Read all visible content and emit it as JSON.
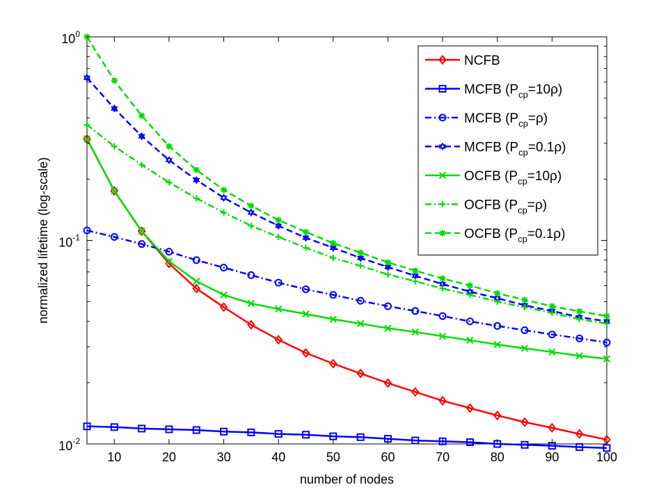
{
  "chart_data": {
    "type": "line",
    "xlabel": "number of nodes",
    "ylabel": "normalized lifetime (log-scale)",
    "y_scale": "log",
    "xlim": [
      5,
      100
    ],
    "ylim": [
      0.01,
      1
    ],
    "x_ticks": [
      10,
      20,
      30,
      40,
      50,
      60,
      70,
      80,
      90,
      100
    ],
    "y_ticks": [
      {
        "value": 1,
        "base": "10",
        "exp": "0"
      },
      {
        "value": 0.1,
        "base": "10",
        "exp": "-1"
      },
      {
        "value": 0.01,
        "base": "10",
        "exp": "-2"
      }
    ],
    "grid": false,
    "legend_position": "top-right",
    "x": [
      5,
      10,
      15,
      20,
      25,
      30,
      35,
      40,
      45,
      50,
      55,
      60,
      65,
      70,
      75,
      80,
      85,
      90,
      95,
      100
    ],
    "series": [
      {
        "name": "NCFB",
        "label_parts": [
          "NCFB"
        ],
        "color": "#ff0000",
        "linestyle": "solid",
        "marker": "diamond",
        "values": [
          0.315,
          0.175,
          0.111,
          0.077,
          0.058,
          0.047,
          0.0385,
          0.0325,
          0.028,
          0.0248,
          0.0222,
          0.0199,
          0.018,
          0.0163,
          0.015,
          0.0138,
          0.0128,
          0.012,
          0.0112,
          0.0105
        ]
      },
      {
        "name": "MCFB (Pcp=10ρ)",
        "label_parts": [
          "MCFB (P",
          "cp",
          "=10ρ)"
        ],
        "color": "#0000ff",
        "linestyle": "solid",
        "marker": "square",
        "values": [
          0.0122,
          0.0121,
          0.0119,
          0.0118,
          0.0117,
          0.0115,
          0.0114,
          0.0112,
          0.0111,
          0.0109,
          0.0108,
          0.0106,
          0.0104,
          0.0103,
          0.0102,
          0.01,
          0.0099,
          0.0098,
          0.00965,
          0.00955
        ]
      },
      {
        "name": "MCFB (Pcp=ρ)",
        "label_parts": [
          "MCFB (P",
          "cp",
          "=ρ)"
        ],
        "color": "#0000ff",
        "linestyle": "dashdot",
        "marker": "circle",
        "values": [
          0.112,
          0.104,
          0.096,
          0.088,
          0.08,
          0.0735,
          0.0675,
          0.062,
          0.0575,
          0.054,
          0.0505,
          0.0475,
          0.045,
          0.0425,
          0.04,
          0.038,
          0.0362,
          0.0345,
          0.033,
          0.0315
        ]
      },
      {
        "name": "MCFB (Pcp=0.1ρ)",
        "label_parts": [
          "MCFB (P",
          "cp",
          "=0.1ρ)"
        ],
        "color": "#0000ff",
        "linestyle": "dashed",
        "marker": "hexagram",
        "values": [
          0.63,
          0.445,
          0.325,
          0.248,
          0.198,
          0.162,
          0.137,
          0.118,
          0.103,
          0.092,
          0.082,
          0.074,
          0.067,
          0.061,
          0.056,
          0.052,
          0.048,
          0.045,
          0.042,
          0.04
        ]
      },
      {
        "name": "OCFB (Pcp=10ρ)",
        "label_parts": [
          "OCFB (P",
          "cp",
          "=10ρ)"
        ],
        "color": "#00dd00",
        "linestyle": "solid",
        "marker": "x",
        "values": [
          0.315,
          0.175,
          0.111,
          0.079,
          0.063,
          0.054,
          0.049,
          0.046,
          0.0435,
          0.041,
          0.039,
          0.037,
          0.0355,
          0.0338,
          0.0323,
          0.0308,
          0.0295,
          0.0283,
          0.0271,
          0.0262
        ]
      },
      {
        "name": "OCFB (Pcp=ρ)",
        "label_parts": [
          "OCFB (P",
          "cp",
          "=ρ)"
        ],
        "color": "#00dd00",
        "linestyle": "dashdot",
        "marker": "plus",
        "values": [
          0.37,
          0.29,
          0.235,
          0.193,
          0.161,
          0.137,
          0.118,
          0.104,
          0.092,
          0.082,
          0.075,
          0.068,
          0.063,
          0.058,
          0.054,
          0.05,
          0.047,
          0.044,
          0.041,
          0.039
        ]
      },
      {
        "name": "OCFB (Pcp=0.1ρ)",
        "label_parts": [
          "OCFB (P",
          "cp",
          "=0.1ρ)"
        ],
        "color": "#00dd00",
        "linestyle": "dashed",
        "marker": "star",
        "values": [
          1.0,
          0.61,
          0.41,
          0.29,
          0.222,
          0.177,
          0.148,
          0.126,
          0.11,
          0.097,
          0.087,
          0.078,
          0.071,
          0.065,
          0.06,
          0.055,
          0.051,
          0.0475,
          0.0448,
          0.0425
        ]
      }
    ]
  }
}
